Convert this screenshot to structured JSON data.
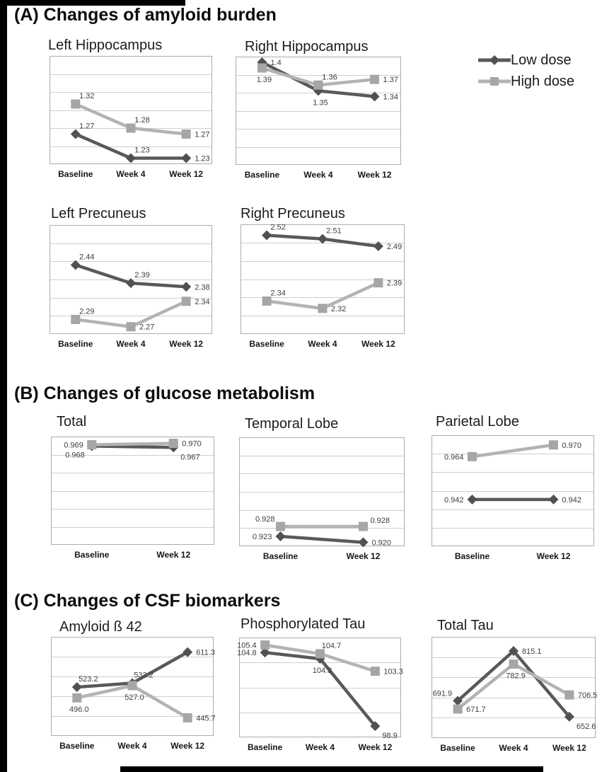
{
  "figure": {
    "sections": {
      "A": {
        "title": "(A) Changes of amyloid burden"
      },
      "B": {
        "title": "(B) Changes of glucose metabolism"
      },
      "C": {
        "title": "(C) Changes of CSF biomarkers"
      }
    }
  },
  "legend": {
    "items": [
      {
        "label": "Low dose",
        "marker": "diamond"
      },
      {
        "label": "High dose",
        "marker": "square"
      }
    ]
  },
  "colors": {
    "low_line": "#59595b",
    "low_marker": "#515153",
    "high_line": "#b3b3b4",
    "high_marker": "#a6a6a7",
    "grid": "#cfcfcf",
    "border": "#adadad",
    "data_label": "#3d3d3d",
    "background": "#ffffff",
    "frame": "#000000"
  },
  "chart_data": [
    {
      "id": "left-hippocampus",
      "section": "A",
      "type": "line",
      "title": "Left Hippocampus",
      "categories": [
        "Baseline",
        "Week 4",
        "Week 12"
      ],
      "ylim": [
        1.22,
        1.4
      ],
      "grid_bands": 6,
      "legend_position": "top-right-of-figure",
      "series": [
        {
          "name": "Low dose",
          "key": "low",
          "values": [
            1.27,
            1.23,
            1.23
          ],
          "labels": [
            "1.27",
            "1.23",
            "1.23"
          ],
          "label_sides": [
            "above",
            "above",
            "right"
          ]
        },
        {
          "name": "High dose",
          "key": "high",
          "values": [
            1.32,
            1.28,
            1.27
          ],
          "labels": [
            "1.32",
            "1.28",
            "1.27"
          ],
          "label_sides": [
            "above",
            "above",
            "right"
          ]
        }
      ]
    },
    {
      "id": "right-hippocampus",
      "section": "A",
      "type": "line",
      "title": "Right Hippocampus",
      "categories": [
        "Baseline",
        "Week 4",
        "Week 12"
      ],
      "ylim": [
        1.22,
        1.41
      ],
      "grid_bands": 6,
      "series": [
        {
          "name": "Low dose",
          "key": "low",
          "values": [
            1.4,
            1.35,
            1.34
          ],
          "labels": [
            "1.4",
            "1.35",
            "1.34"
          ],
          "label_sides": [
            "right",
            "below",
            "right"
          ]
        },
        {
          "name": "High dose",
          "key": "high",
          "values": [
            1.39,
            1.36,
            1.37
          ],
          "labels": [
            "1.39",
            "1.36",
            "1.37"
          ],
          "label_sides": [
            "below",
            "above",
            "right"
          ]
        }
      ]
    },
    {
      "id": "left-precuneus",
      "section": "A",
      "type": "line",
      "title": "Left Precuneus",
      "categories": [
        "Baseline",
        "Week 4",
        "Week 12"
      ],
      "ylim": [
        2.25,
        2.55
      ],
      "grid_bands": 6,
      "series": [
        {
          "name": "Low dose",
          "key": "low",
          "values": [
            2.44,
            2.39,
            2.38
          ],
          "labels": [
            "2.44",
            "2.39",
            "2.38"
          ],
          "label_sides": [
            "above",
            "above",
            "right"
          ]
        },
        {
          "name": "High dose",
          "key": "high",
          "values": [
            2.29,
            2.27,
            2.34
          ],
          "labels": [
            "2.29",
            "2.27",
            "2.34"
          ],
          "label_sides": [
            "above",
            "right",
            "right"
          ]
        }
      ]
    },
    {
      "id": "right-precuneus",
      "section": "A",
      "type": "line",
      "title": "Right Precuneus",
      "categories": [
        "Baseline",
        "Week 4",
        "Week 12"
      ],
      "ylim": [
        2.25,
        2.55
      ],
      "grid_bands": 6,
      "series": [
        {
          "name": "Low dose",
          "key": "low",
          "values": [
            2.52,
            2.51,
            2.49
          ],
          "labels": [
            "2.52",
            "2.51",
            "2.49"
          ],
          "label_sides": [
            "above",
            "above",
            "right"
          ]
        },
        {
          "name": "High dose",
          "key": "high",
          "values": [
            2.34,
            2.32,
            2.39
          ],
          "labels": [
            "2.34",
            "2.32",
            "2.39"
          ],
          "label_sides": [
            "above",
            "right",
            "right"
          ]
        }
      ]
    },
    {
      "id": "total",
      "section": "B",
      "type": "line",
      "title": "Total",
      "categories": [
        "Baseline",
        "Week 12"
      ],
      "ylim": [
        0.895,
        0.975
      ],
      "grid_bands": 6,
      "series": [
        {
          "name": "Low dose",
          "key": "low",
          "values": [
            0.968,
            0.967
          ],
          "labels": [
            "0.968",
            "0.967"
          ],
          "label_sides": [
            "below-left",
            "below-right"
          ]
        },
        {
          "name": "High dose",
          "key": "high",
          "values": [
            0.969,
            0.97
          ],
          "labels": [
            "0.969",
            "0.970"
          ],
          "label_sides": [
            "left",
            "right"
          ]
        }
      ]
    },
    {
      "id": "temporal-lobe",
      "section": "B",
      "type": "line",
      "title": "Temporal Lobe",
      "categories": [
        "Baseline",
        "Week 12"
      ],
      "ylim": [
        0.918,
        0.973
      ],
      "grid_bands": 6,
      "series": [
        {
          "name": "Low dose",
          "key": "low",
          "values": [
            0.923,
            0.92
          ],
          "labels": [
            "0.923",
            "0.920"
          ],
          "label_sides": [
            "left",
            "right"
          ]
        },
        {
          "name": "High dose",
          "key": "high",
          "values": [
            0.928,
            0.928
          ],
          "labels": [
            "0.928",
            "0.928"
          ],
          "label_sides": [
            "above-left",
            "above-right"
          ]
        }
      ]
    },
    {
      "id": "parietal-lobe",
      "section": "B",
      "type": "line",
      "title": "Parietal Lobe",
      "categories": [
        "Baseline",
        "Week 12"
      ],
      "ylim": [
        0.918,
        0.975
      ],
      "grid_bands": 6,
      "series": [
        {
          "name": "Low dose",
          "key": "low",
          "values": [
            0.942,
            0.942
          ],
          "labels": [
            "0.942",
            "0.942"
          ],
          "label_sides": [
            "left",
            "right"
          ]
        },
        {
          "name": "High dose",
          "key": "high",
          "values": [
            0.964,
            0.97
          ],
          "labels": [
            "0.964",
            "0.970"
          ],
          "label_sides": [
            "left",
            "right"
          ]
        }
      ]
    },
    {
      "id": "amyloid-b42",
      "section": "C",
      "type": "line",
      "title": "Amyloid ß 42",
      "categories": [
        "Baseline",
        "Week 4",
        "Week 12"
      ],
      "ylim": [
        400,
        650
      ],
      "grid_bands": 5,
      "series": [
        {
          "name": "Low dose",
          "key": "low",
          "values": [
            523.2,
            533.2,
            611.3
          ],
          "labels": [
            "523.2",
            "533.2",
            "611.3"
          ],
          "label_sides": [
            "above",
            "above",
            "right"
          ]
        },
        {
          "name": "High dose",
          "key": "high",
          "values": [
            496.0,
            527.0,
            445.7
          ],
          "labels": [
            "496.0",
            "527.0",
            "445.7"
          ],
          "label_sides": [
            "below",
            "below",
            "right"
          ]
        }
      ]
    },
    {
      "id": "phosphorylated-tau",
      "section": "C",
      "type": "line",
      "title": "Phosphorylated Tau",
      "categories": [
        "Baseline",
        "Week 4",
        "Week 12"
      ],
      "ylim": [
        98,
        106
      ],
      "grid_bands": 4,
      "series": [
        {
          "name": "Low dose",
          "key": "low",
          "values": [
            104.8,
            104.3,
            98.9
          ],
          "labels": [
            "104.8",
            "104.3",
            "98.9"
          ],
          "label_sides": [
            "left",
            "below",
            "below-right"
          ]
        },
        {
          "name": "High dose",
          "key": "high",
          "values": [
            105.4,
            104.7,
            103.3
          ],
          "labels": [
            "105.4",
            "104.7",
            "103.3"
          ],
          "label_sides": [
            "left",
            "above",
            "right"
          ]
        }
      ]
    },
    {
      "id": "total-tau",
      "section": "C",
      "type": "line",
      "title": "Total Tau",
      "categories": [
        "Baseline",
        "Week 4",
        "Week 12"
      ],
      "ylim": [
        600,
        850
      ],
      "grid_bands": 5,
      "series": [
        {
          "name": "Low dose",
          "key": "low",
          "values": [
            691.9,
            815.1,
            652.6
          ],
          "labels": [
            "691.9",
            "815.1",
            "652.6"
          ],
          "label_sides": [
            "above-left",
            "right",
            "below-right"
          ]
        },
        {
          "name": "High dose",
          "key": "high",
          "values": [
            671.7,
            782.9,
            706.5
          ],
          "labels": [
            "671.7",
            "782.9",
            "706.5"
          ],
          "label_sides": [
            "right",
            "below",
            "right"
          ]
        }
      ]
    }
  ]
}
